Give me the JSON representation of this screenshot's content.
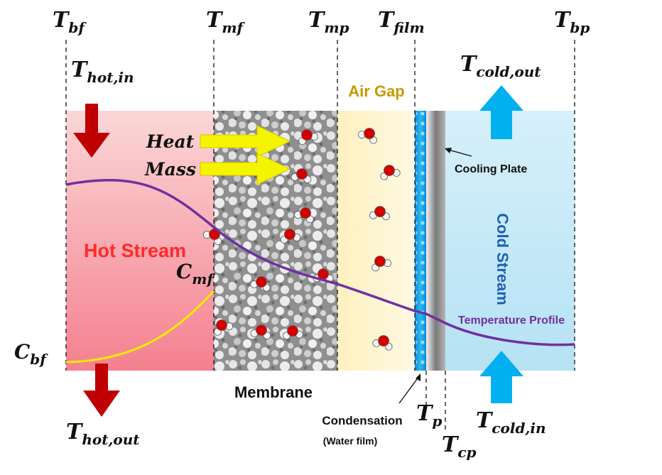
{
  "temperature_labels": {
    "t_bf": {
      "main": "T",
      "sub": "bf"
    },
    "t_mf": {
      "main": "T",
      "sub": "mf"
    },
    "t_mp": {
      "main": "T",
      "sub": "mp"
    },
    "t_film": {
      "main": "T",
      "sub": "film"
    },
    "t_bp": {
      "main": "T",
      "sub": "bp"
    },
    "t_hot_in": {
      "main": "T",
      "sub": "hot,in"
    },
    "t_cold_out": {
      "main": "T",
      "sub": "cold,out"
    },
    "t_hot_out": {
      "main": "T",
      "sub": "hot,out"
    },
    "t_p": {
      "main": "T",
      "sub": "p"
    },
    "t_cp": {
      "main": "T",
      "sub": "cp"
    },
    "t_cold_in": {
      "main": "T",
      "sub": "cold,in"
    }
  },
  "concentration_labels": {
    "c_mf": {
      "main": "C",
      "sub": "mf"
    },
    "c_bf": {
      "main": "C",
      "sub": "bf"
    }
  },
  "regions": {
    "hot_stream": "Hot Stream",
    "membrane": "Membrane",
    "air_gap": "Air Gap",
    "cooling_plate": "Cooling Plate",
    "cold_stream": "Cold Stream"
  },
  "flux_labels": {
    "heat": "Heat",
    "mass": "Mass"
  },
  "annotations": {
    "condensation": "Condensation",
    "water_film": "(Water film)",
    "temperature_profile": "Temperature Profile"
  },
  "colors": {
    "hot_stream_top": "#fbd7d7",
    "hot_stream_bottom": "#f4808f",
    "air_gap": "#fdf2c4",
    "water_film": "#1ba8ea",
    "cold_stream": "#c7e9f6",
    "hot_arrow": "#c00000",
    "cold_arrow": "#00b0f0",
    "flux_arrow": "#f4f400",
    "temperature_profile": "#7030a0",
    "concentration_profile": "#ffeb00",
    "hot_stream_text": "#ff2a2a",
    "air_gap_text": "#c49a00",
    "cold_stream_text": "#1f5fb3"
  }
}
